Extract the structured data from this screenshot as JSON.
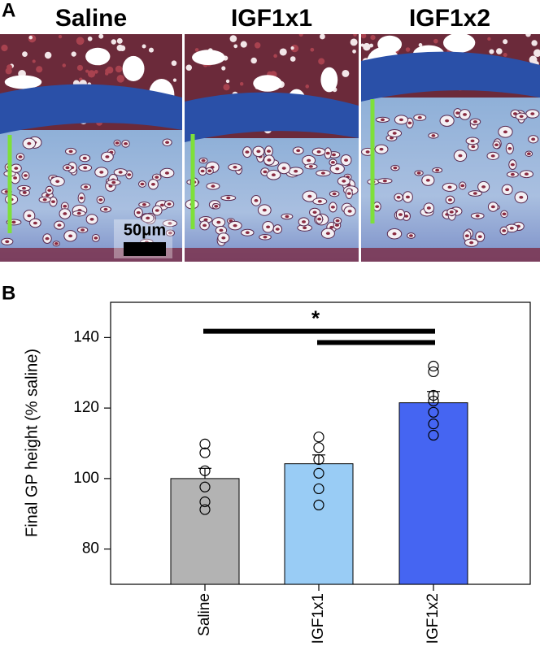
{
  "panel_a": {
    "label": "A",
    "titles": [
      "Saline",
      "IGF1x1",
      "IGF1x2"
    ],
    "scale_bar": "50μm"
  },
  "chart_data": {
    "type": "bar",
    "label": "B",
    "ylabel": "Final GP height (% saline)",
    "categories": [
      "Saline",
      "IGF1x1",
      "IGF1x2"
    ],
    "values": [
      100,
      104.2,
      121.5
    ],
    "errors": [
      2.9,
      2.5,
      3.2
    ],
    "colors": [
      "#b3b3b3",
      "#99ccf5",
      "#4565f2"
    ],
    "points": [
      [
        109.8,
        107.3,
        102.2,
        97.6,
        93.4,
        91.2
      ],
      [
        111.8,
        108.8,
        105.4,
        101.5,
        97.1,
        92.5
      ],
      [
        131.9,
        130.3,
        123.6,
        122,
        118.8,
        115.5,
        112.3
      ]
    ],
    "significance_y": [
      141.8,
      138.6
    ],
    "annotation": "*",
    "ylim": [
      70,
      150
    ],
    "yticks": [
      80,
      100,
      120,
      140
    ]
  }
}
